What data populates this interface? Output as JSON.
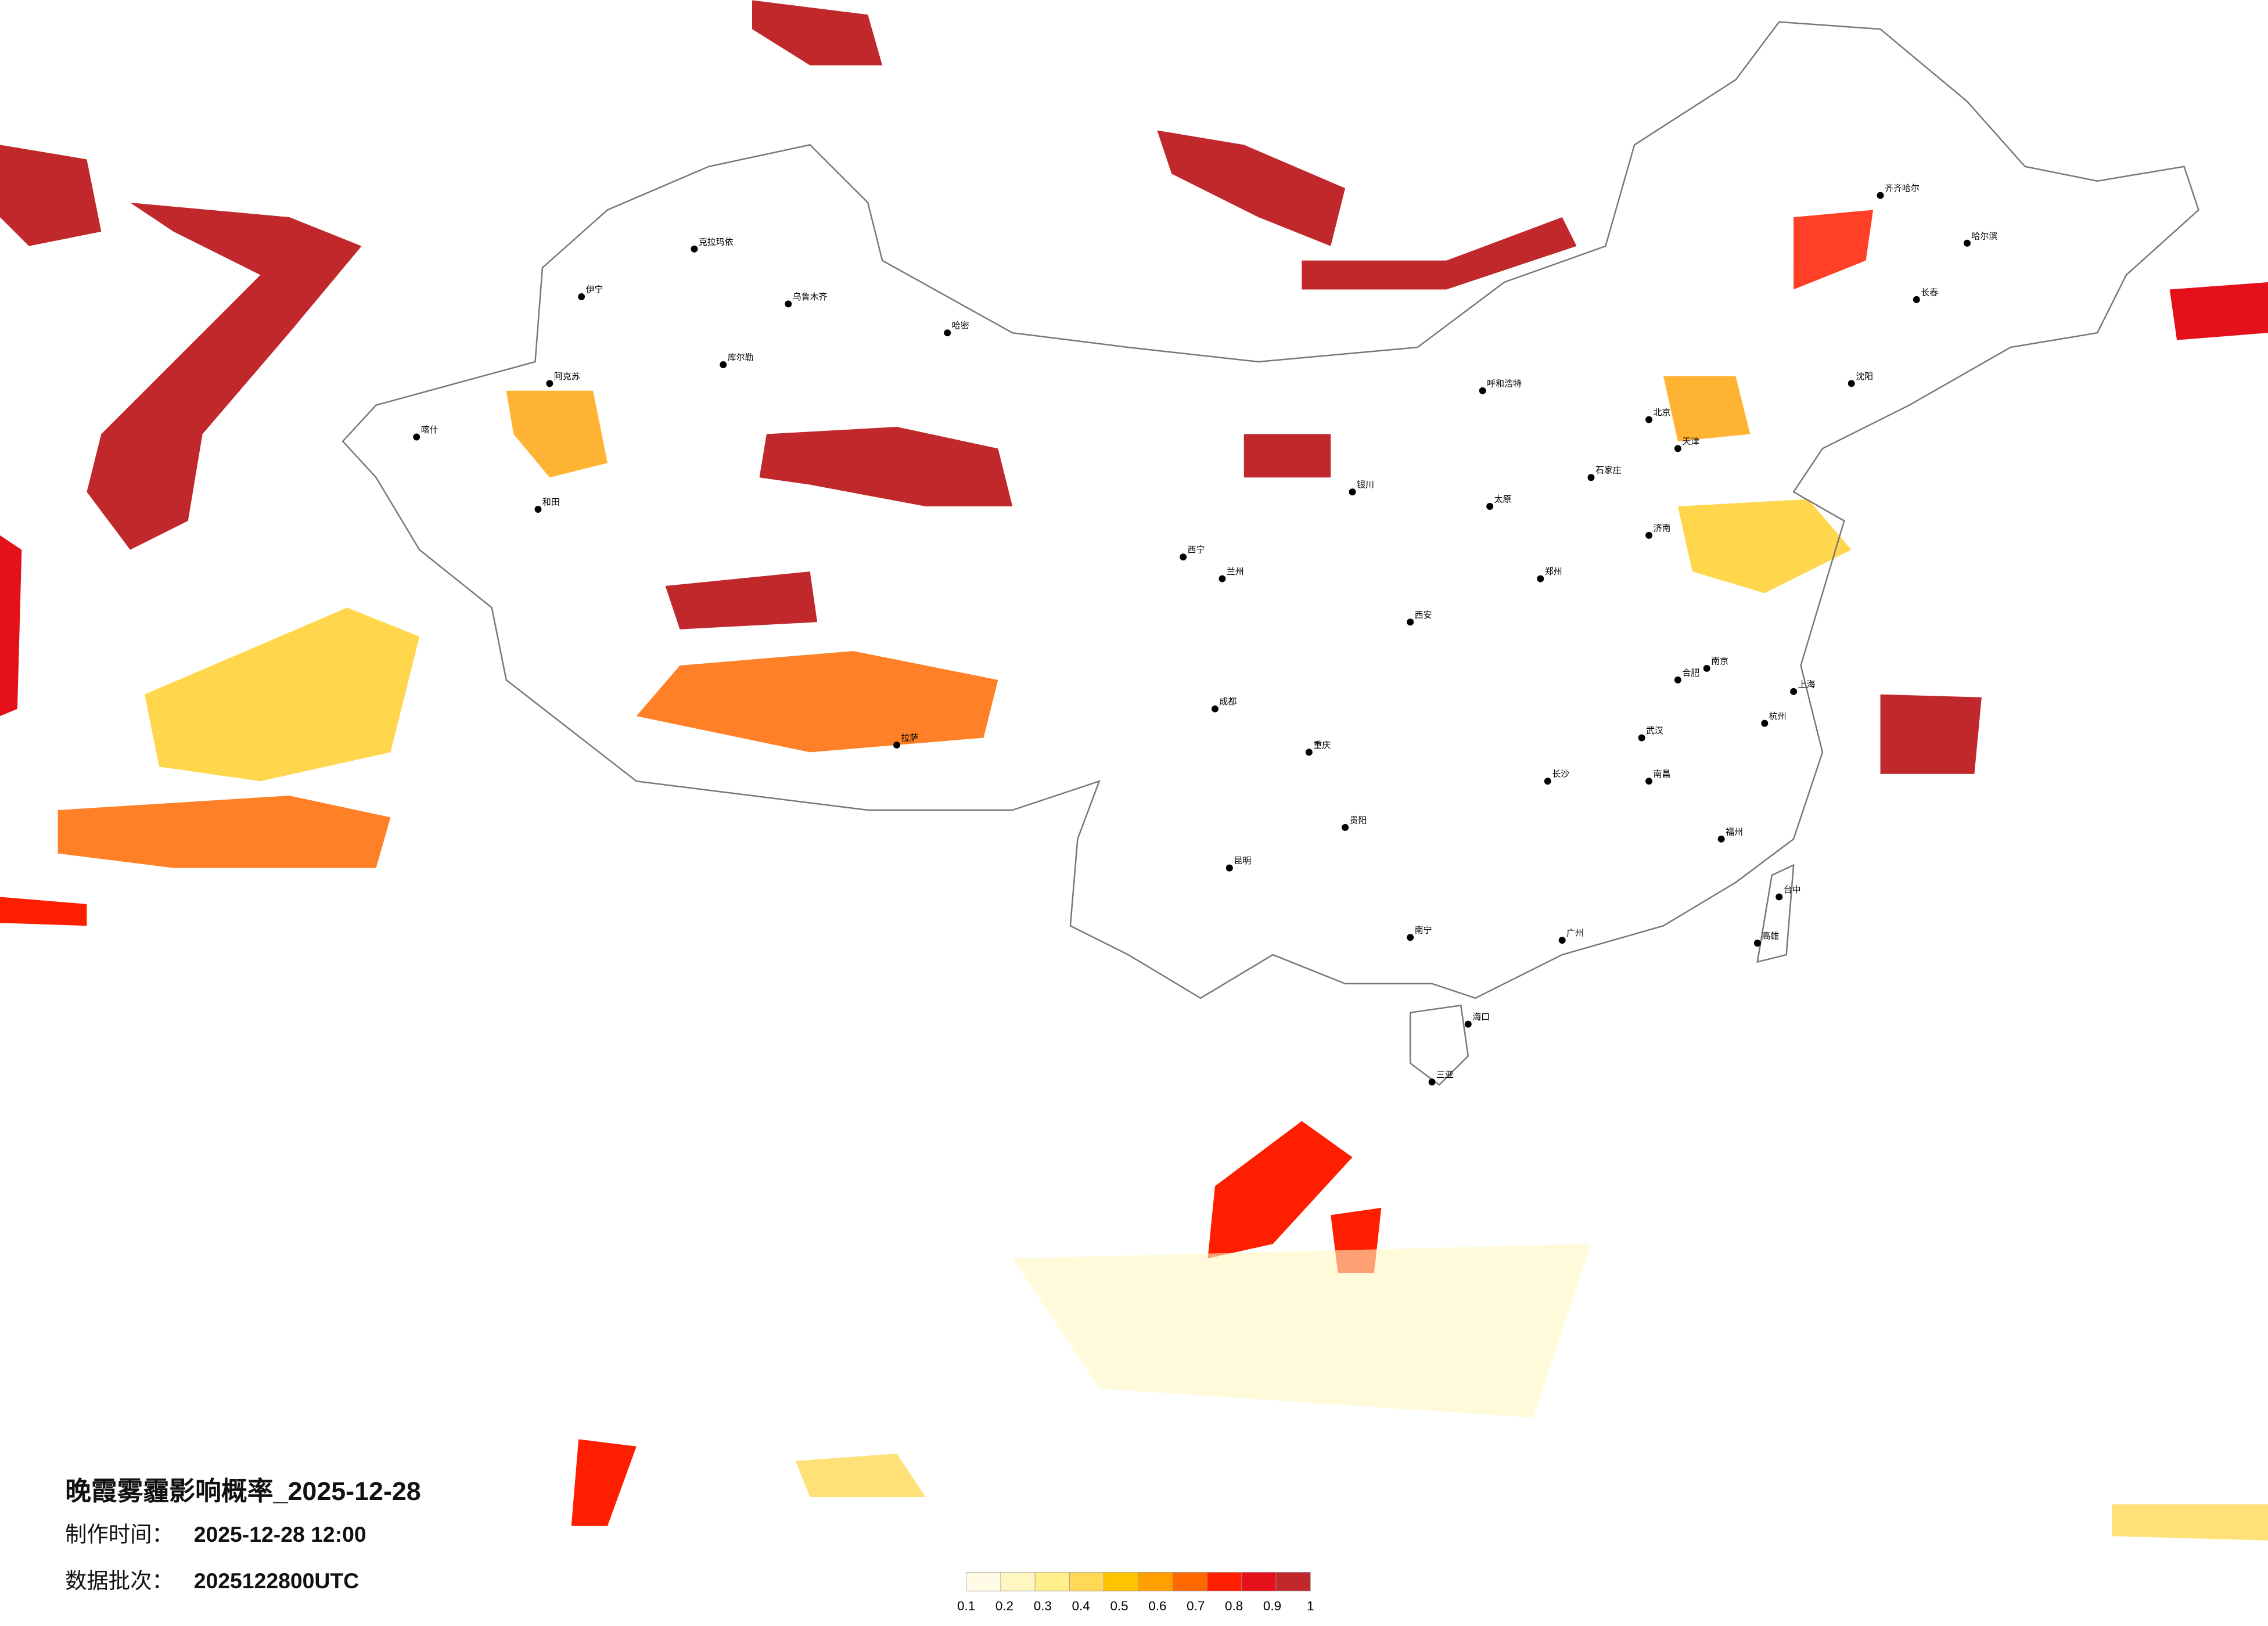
{
  "header": {
    "title": "晚霞雾霾影响概率_2025-12-28",
    "made_label": "制作时间：",
    "made_value": "2025-12-28 12:00",
    "batch_label": "数据批次：",
    "batch_value": "2025122800UTC"
  },
  "colorbar": {
    "ticks": [
      0.1,
      0.2,
      0.3,
      0.4,
      0.5,
      0.6,
      0.7,
      0.8,
      0.9,
      1
    ],
    "colors": [
      "#fffbe6",
      "#fff6c2",
      "#ffee8c",
      "#ffd956",
      "#ffc400",
      "#ffa000",
      "#ff6a00",
      "#ff1e00",
      "#e4101a",
      "#c0282c"
    ]
  },
  "cities": [
    "乌鲁木齐",
    "克拉玛依",
    "伊宁",
    "库尔勒",
    "阿克苏",
    "和田",
    "喀什",
    "哈密",
    "拉萨",
    "西宁",
    "兰州",
    "银川",
    "呼和浩特",
    "北京",
    "天津",
    "石家庄",
    "太原",
    "西安",
    "郑州",
    "济南",
    "沈阳",
    "长春",
    "哈尔滨",
    "齐齐哈尔",
    "成都",
    "重庆",
    "贵阳",
    "昆明",
    "南宁",
    "广州",
    "长沙",
    "武汉",
    "南京",
    "上海",
    "杭州",
    "福州",
    "南昌",
    "合肥",
    "海口",
    "三亚",
    "台中",
    "高雄"
  ]
}
